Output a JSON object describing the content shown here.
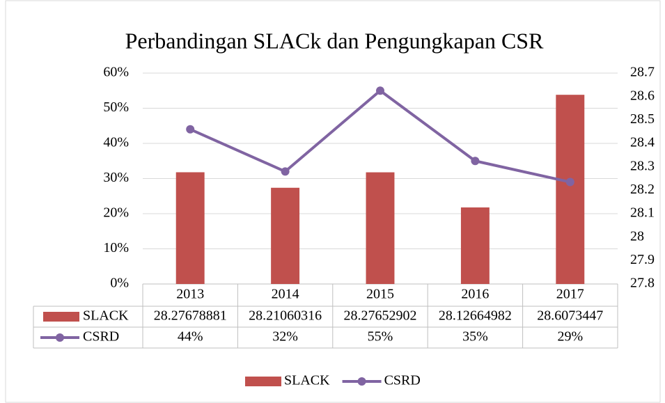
{
  "chart_data": {
    "type": "combo",
    "title": "Perbandingan SLACk dan Pengungkapan CSR",
    "categories": [
      "2013",
      "2014",
      "2015",
      "2016",
      "2017"
    ],
    "series": [
      {
        "name": "SLACK",
        "type": "bar",
        "axis": "y2",
        "color": "#c0504d",
        "values": [
          28.27678881,
          28.21060316,
          28.27652902,
          28.12664982,
          28.6073447
        ]
      },
      {
        "name": "CSRD",
        "type": "line",
        "color": "#8064a2",
        "values": [
          44,
          32,
          55,
          35,
          29
        ],
        "value_labels": [
          "44%",
          "32%",
          "55%",
          "35%",
          "29%"
        ]
      }
    ],
    "ylim": [
      0,
      60
    ],
    "yticks": [
      {
        "value": 0,
        "label": "0%"
      },
      {
        "value": 10,
        "label": "10%"
      },
      {
        "value": 20,
        "label": "20%"
      },
      {
        "value": 30,
        "label": "30%"
      },
      {
        "value": 40,
        "label": "40%"
      },
      {
        "value": 50,
        "label": "50%"
      },
      {
        "value": 60,
        "label": "60%"
      }
    ],
    "y2lim": [
      27.8,
      28.7
    ],
    "y2ticks": [
      27.8,
      27.9,
      28,
      28.1,
      28.2,
      28.3,
      28.4,
      28.5,
      28.6,
      28.7
    ],
    "grid": true,
    "data_table": true,
    "legend": "bottom"
  }
}
